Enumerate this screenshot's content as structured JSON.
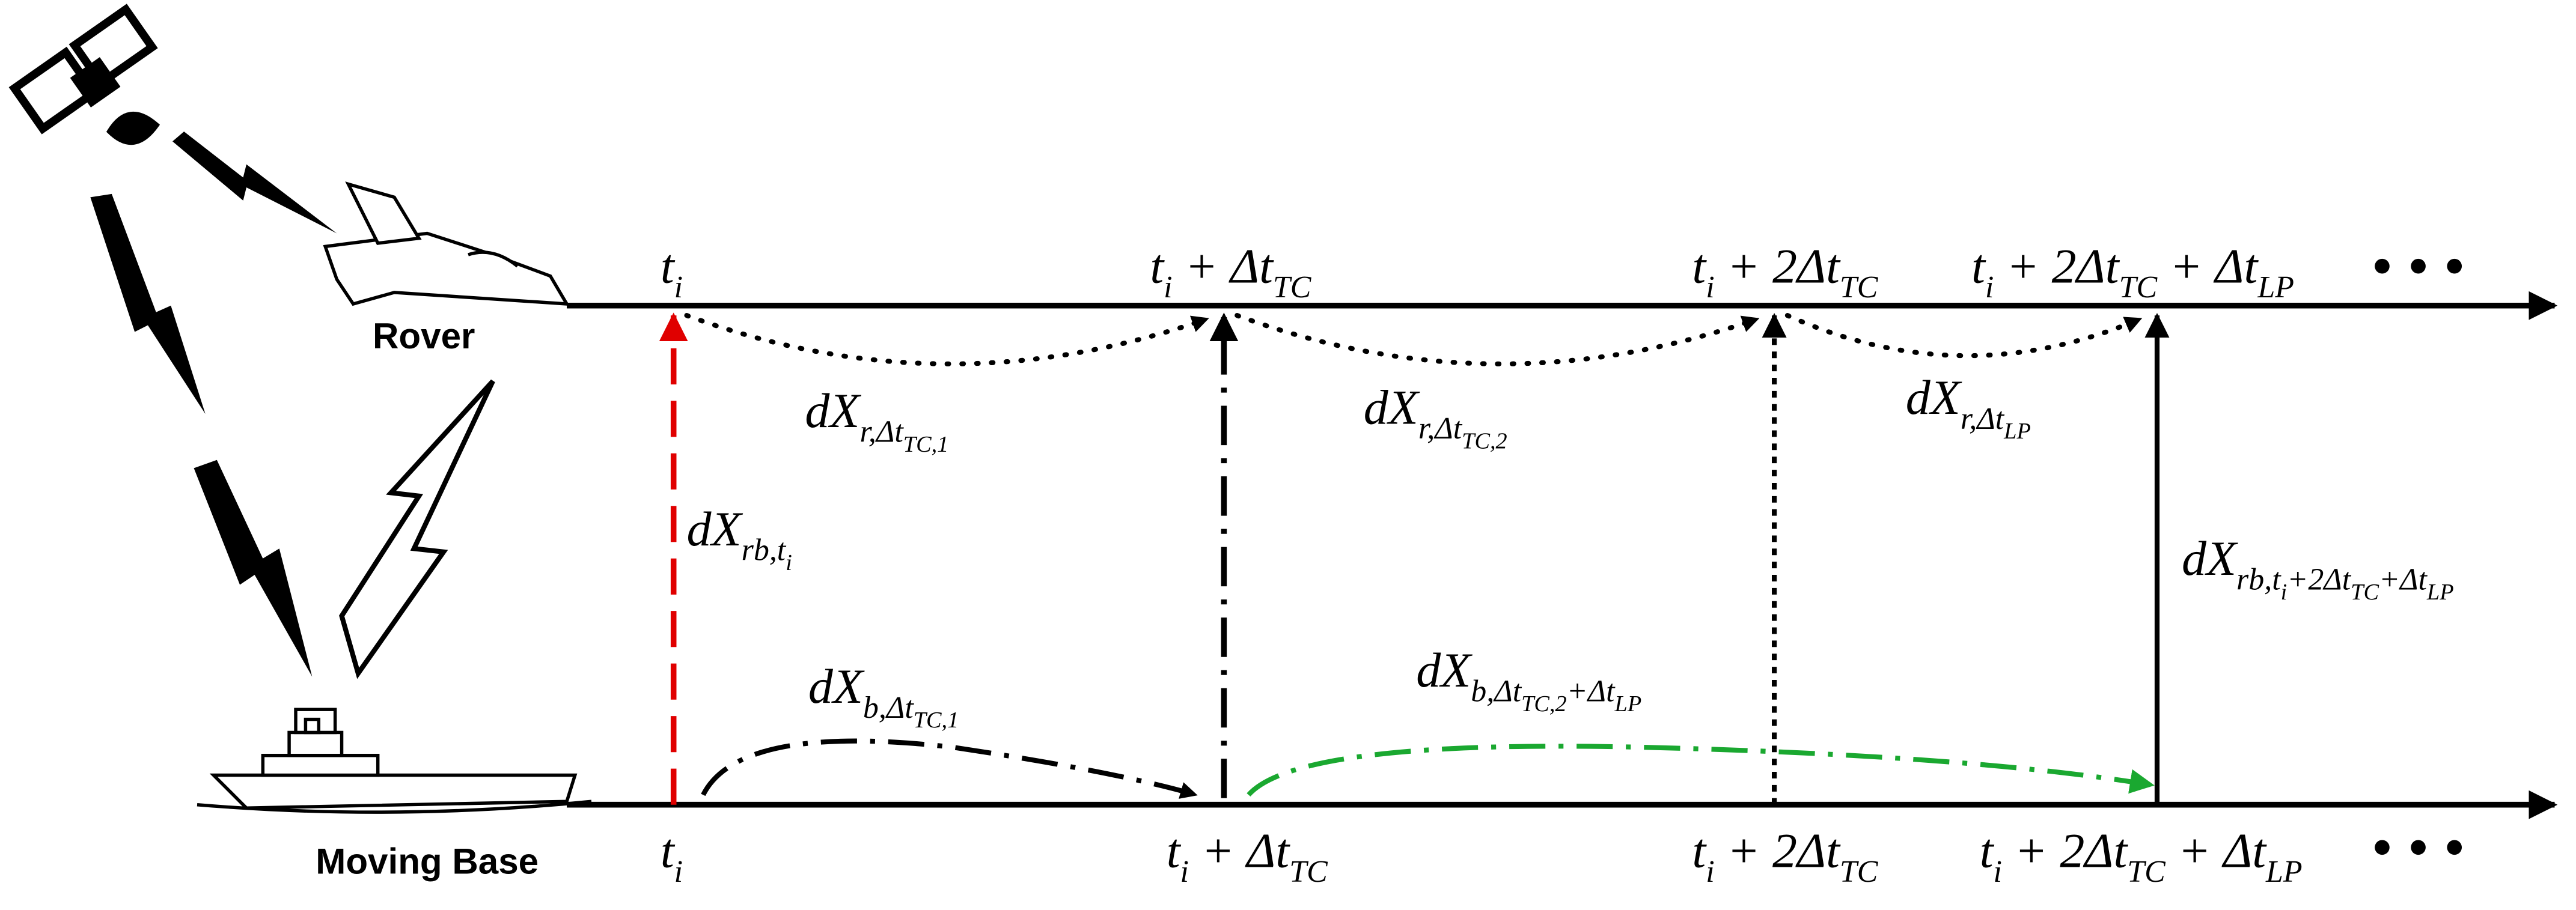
{
  "nodes": {
    "rover": "Rover",
    "base": "Moving Base"
  },
  "labels": {
    "top": [
      [
        {
          "t": "t"
        },
        {
          "sub": "i"
        }
      ],
      [
        {
          "t": "t"
        },
        {
          "sub": "i"
        },
        {
          "t": " + Δt"
        },
        {
          "sub": "TC"
        }
      ],
      [
        {
          "t": "t"
        },
        {
          "sub": "i"
        },
        {
          "t": " + 2Δt"
        },
        {
          "sub": "TC"
        }
      ],
      [
        {
          "t": "t"
        },
        {
          "sub": "i"
        },
        {
          "t": " + 2Δt"
        },
        {
          "sub": "TC"
        },
        {
          "t": " + Δt"
        },
        {
          "sub": "LP"
        }
      ]
    ],
    "bottom": [
      [
        {
          "t": "t"
        },
        {
          "sub": "i"
        }
      ],
      [
        {
          "t": "t"
        },
        {
          "sub": "i"
        },
        {
          "t": " + Δt"
        },
        {
          "sub": "TC"
        }
      ],
      [
        {
          "t": "t"
        },
        {
          "sub": "i"
        },
        {
          "t": " + 2Δt"
        },
        {
          "sub": "TC"
        }
      ],
      [
        {
          "t": "t"
        },
        {
          "sub": "i"
        },
        {
          "t": " + 2Δt"
        },
        {
          "sub": "TC"
        },
        {
          "t": " + Δt"
        },
        {
          "sub": "LP"
        }
      ]
    ],
    "edges": [
      [
        {
          "t": "dX"
        },
        {
          "sub": "r,Δt"
        },
        {
          "subsub": "TC,1"
        }
      ],
      [
        {
          "t": "dX"
        },
        {
          "sub": "r,Δt"
        },
        {
          "subsub": "TC,2"
        }
      ],
      [
        {
          "t": "dX"
        },
        {
          "sub": "r,Δt"
        },
        {
          "subsub": "LP"
        }
      ],
      [
        {
          "t": "dX"
        },
        {
          "sub": "rb,t"
        },
        {
          "subsub": "i"
        }
      ],
      [
        {
          "t": "dX"
        },
        {
          "sub": "b,Δt"
        },
        {
          "subsub": "TC,1"
        }
      ],
      [
        {
          "t": "dX"
        },
        {
          "sub": "b,Δt"
        },
        {
          "subsub": "TC,2"
        },
        {
          "sub": "+Δt"
        },
        {
          "subsub": "LP"
        }
      ],
      [
        {
          "t": "dX"
        },
        {
          "sub": "rb,t"
        },
        {
          "subsub": "i"
        },
        {
          "sub": "+2Δt"
        },
        {
          "subsub": "TC"
        },
        {
          "sub": "+Δt"
        },
        {
          "subsub": "LP"
        }
      ]
    ]
  }
}
